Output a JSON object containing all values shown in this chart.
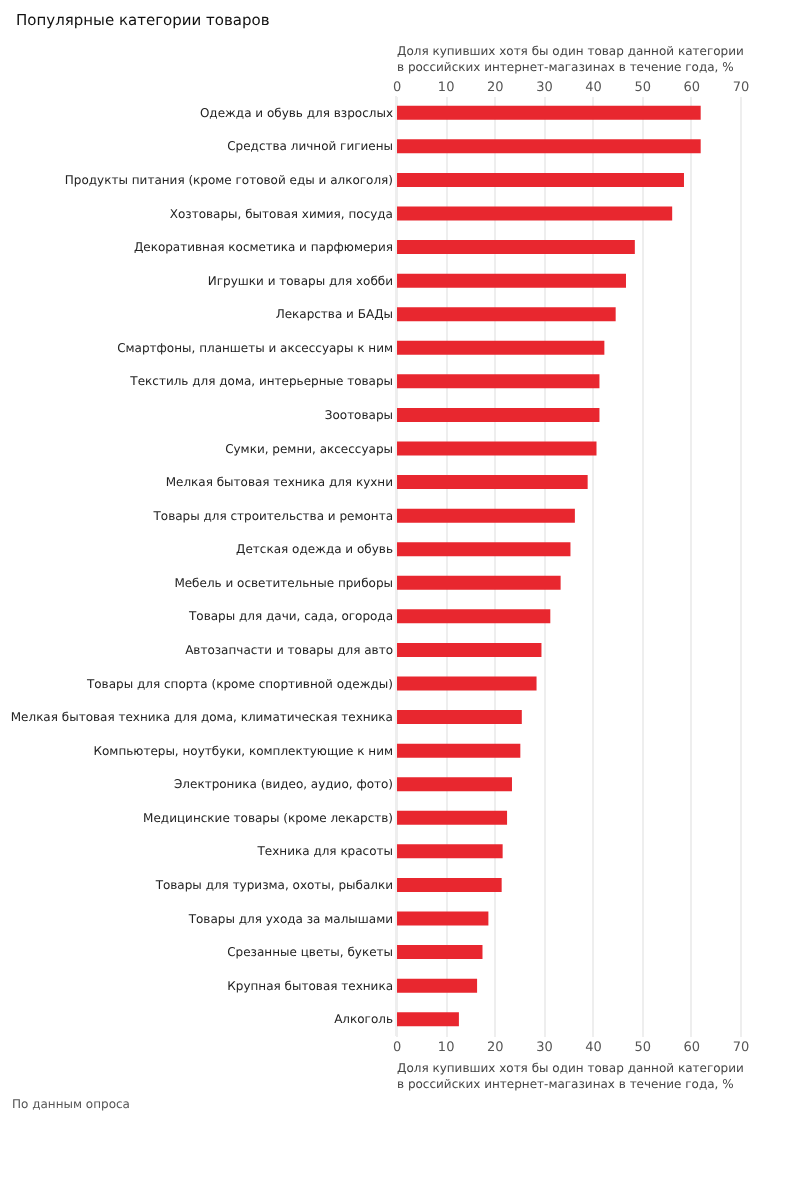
{
  "chart_data": {
    "type": "bar",
    "orientation": "horizontal",
    "title": "Популярные категории товаров",
    "xlabel": "Доля купивших хотя бы один товар данной категории в российских интернет-магазинах в течение года, %",
    "x2label": "Доля купивших хотя бы один товар данной категории в российских интернет-магазинах в течение года, %",
    "categories": [
      "Одежда и обувь для взрослых",
      "Средства личной гигиены",
      "Продукты питания (кроме готовой еды и алкоголя)",
      "Хозтовары, бытовая химия, посуда",
      "Декоративная косметика и парфюмерия",
      "Игрушки и товары для хобби",
      "Лекарства и БАДы",
      "Смартфоны, планшеты и аксессуары к ним",
      "Текстиль для дома, интерьерные товары",
      "Зоотовары",
      "Сумки, ремни, аксессуары",
      "Мелкая бытовая техника для кухни",
      "Товары для строительства и ремонта",
      "Детская одежда и обувь",
      "Мебель и осветительные приборы",
      "Товары для дачи, сада, огорода",
      "Автозапчасти и товары для авто",
      "Товары для спорта (кроме спортивной одежды)",
      "Мелкая бытовая техника для дома, климатическая техника",
      "Компьютеры, ноутбуки, комплектующие к ним",
      "Электроника (видео, аудио, фото)",
      "Медицинские товары (кроме лекарств)",
      "Техника для красоты",
      "Товары для туризма, охоты, рыбалки",
      "Товары для ухода за малышами",
      "Срезанные цветы, букеты",
      "Крупная бытовая техника",
      "Алкоголь"
    ],
    "values": [
      62,
      62,
      58.6,
      56.2,
      48.6,
      46.8,
      44.7,
      42.4,
      41.4,
      41.4,
      40.8,
      39,
      36.4,
      35.5,
      33.5,
      31.4,
      29.6,
      28.6,
      25.6,
      25.3,
      23.6,
      22.6,
      21.7,
      21.5,
      18.8,
      17.6,
      16.5,
      12.8
    ],
    "color": "#e8272f",
    "xlim": [
      0,
      70
    ],
    "xticks": [
      0,
      10,
      20,
      30,
      40,
      50,
      60,
      70
    ],
    "x2lim": [
      0,
      70
    ],
    "x2ticks": [
      0,
      10,
      20,
      30,
      40,
      50,
      60,
      70
    ],
    "grid": "x",
    "annotations": [
      "По данным опроса"
    ]
  }
}
